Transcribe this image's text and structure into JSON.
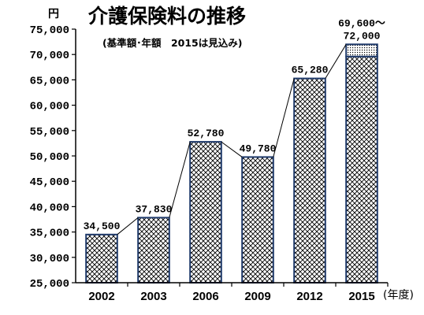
{
  "chart_data": {
    "type": "bar",
    "title": "介護保険料の推移",
    "subtitle": "(基準額･年額　2015は見込み)",
    "y_unit": "円",
    "x_unit": "(年度)",
    "ylim": [
      25000,
      75000
    ],
    "yticks": [
      "25,000",
      "30,000",
      "35,000",
      "40,000",
      "45,000",
      "50,000",
      "55,000",
      "60,000",
      "65,000",
      "70,000",
      "75,000"
    ],
    "categories": [
      "2002",
      "2003",
      "2006",
      "2009",
      "2012",
      "2015"
    ],
    "values": [
      34500,
      37830,
      52780,
      49780,
      65280,
      69600
    ],
    "range_top": {
      "category": "2015",
      "low": 69600,
      "high": 72000
    },
    "data_labels": [
      "34,500",
      "37,830",
      "52,780",
      "49,780",
      "65,280",
      "69,600～\n72,000"
    ],
    "grid": false,
    "legend": "none",
    "connector_lines": true,
    "colors": {
      "bar_border": "#1f3a6b",
      "hatch": "#000000",
      "top_segment": "#000000"
    }
  }
}
